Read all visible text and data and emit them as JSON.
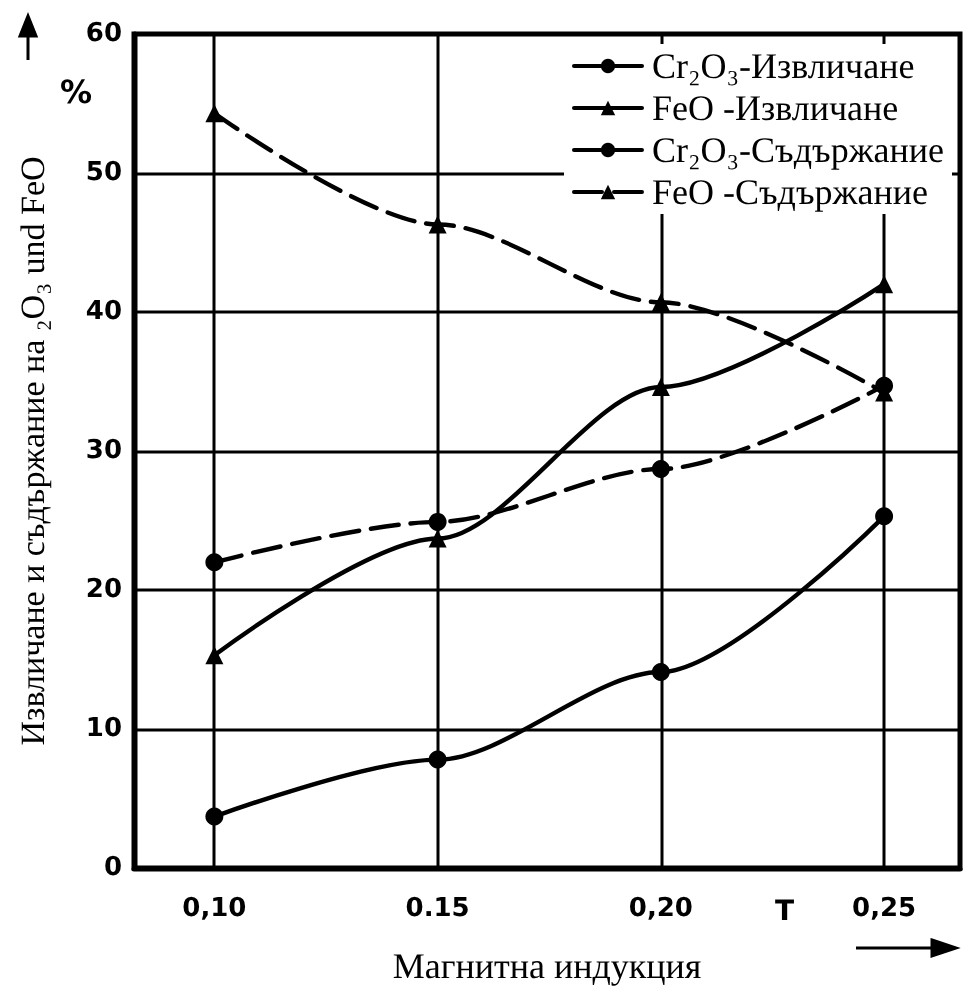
{
  "chart_data": {
    "type": "line",
    "xlabel": "Магнитна индукция",
    "ylabel": "Извличане и съдържание на ₂O₃ und FeO",
    "x": [
      0.1,
      0.15,
      0.2,
      0.25
    ],
    "series": [
      {
        "name": "Cr₂O₃-Извличане",
        "color": "#000000",
        "values": [
          3.7,
          7.8,
          14.1,
          25.3
        ],
        "marker": "circle",
        "line_style": "solid"
      },
      {
        "name": "FeO -Извличане",
        "color": "#000000",
        "values": [
          15.3,
          23.7,
          34.6,
          42
        ],
        "marker": "triangle",
        "line_style": "solid"
      },
      {
        "name": "Cr₂O₃-Съдържание",
        "color": "#000000",
        "values": [
          22,
          24.9,
          28.7,
          34.7
        ],
        "marker": "circle",
        "line_style": "dashed"
      },
      {
        "name": "FeO -Съдържание",
        "color": "#000000",
        "values": [
          54.3,
          46.3,
          40.7,
          34.2
        ],
        "marker": "triangle",
        "line_style": "dashed"
      }
    ],
    "xlim": [
      0.082,
      0.267
    ],
    "xticks": [
      {
        "value": 0.1,
        "label": "0,10"
      },
      {
        "value": 0.15,
        "label": "0.15"
      },
      {
        "value": 0.2,
        "label": "0,20"
      },
      {
        "value": 0.25,
        "label": "0,25"
      }
    ],
    "ylim": [
      0,
      60
    ],
    "yticks": [
      0,
      10,
      20,
      30,
      40,
      50,
      60
    ],
    "annotations": [
      "%",
      "T"
    ],
    "grid": true,
    "legend": "top right"
  }
}
